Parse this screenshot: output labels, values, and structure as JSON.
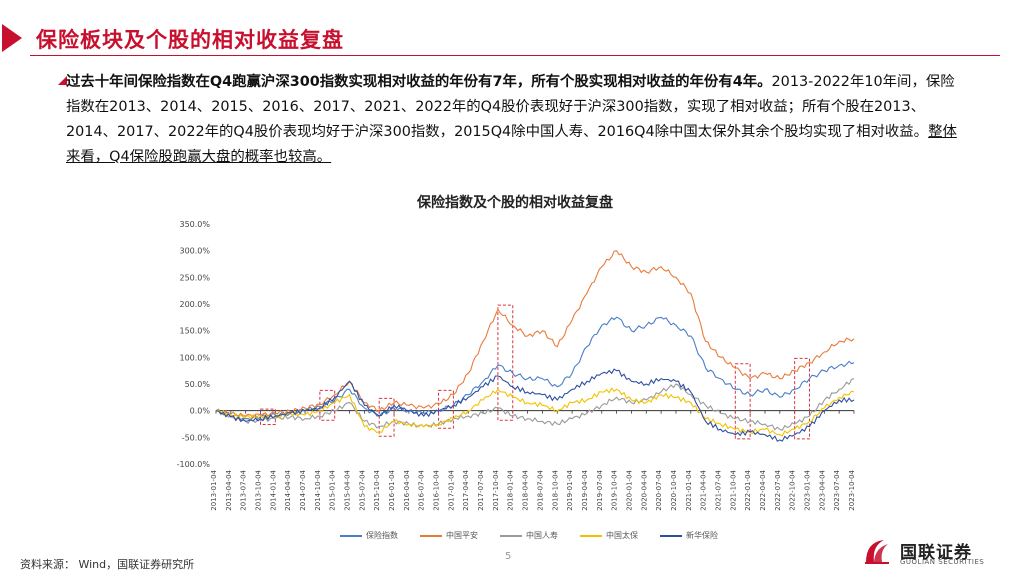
{
  "header": {
    "title": "保险板块及个股的相对收益复盘"
  },
  "summary": {
    "part1": "过去十年间保险指数在Q4跑赢沪深300指数实现相对收益的年份有7年，所有个股实现相对收益的年份有4年。",
    "part2": "2013-2022年10年间，保险指数在2013、2014、2015、2016、2017、2021、2022年的Q4股价表现好于沪深300指数，实现了相对收益；所有个股在2013、2014、2017、2022年的Q4股价表现均好于沪深300指数，2015Q4除中国人寿、2016Q4除中国太保外其余个股均实现了相对收益。",
    "part3": "整体来看，Q4保险股跑赢大盘的概率也较高。"
  },
  "chart_data": {
    "type": "line",
    "title": "保险指数及个股的相对收益复盘",
    "xlabel": "",
    "ylabel": "",
    "ylim": [
      -100,
      350
    ],
    "y_ticks": [
      "-100.0%",
      "-50.0%",
      "0.0%",
      "50.0%",
      "100.0%",
      "150.0%",
      "200.0%",
      "250.0%",
      "300.0%",
      "350.0%"
    ],
    "y_tick_values": [
      -100,
      -50,
      0,
      50,
      100,
      150,
      200,
      250,
      300,
      350
    ],
    "categories": [
      "2013-01-04",
      "2013-04-04",
      "2013-07-04",
      "2013-10-04",
      "2014-01-04",
      "2014-04-04",
      "2014-07-04",
      "2014-10-04",
      "2015-01-04",
      "2015-04-04",
      "2015-07-04",
      "2015-10-04",
      "2016-01-04",
      "2016-04-04",
      "2016-07-04",
      "2016-10-04",
      "2017-01-04",
      "2017-04-04",
      "2017-07-04",
      "2017-10-04",
      "2018-01-04",
      "2018-04-04",
      "2018-07-04",
      "2018-10-04",
      "2019-01-04",
      "2019-04-04",
      "2019-07-04",
      "2019-10-04",
      "2020-01-04",
      "2020-04-04",
      "2020-07-04",
      "2020-10-04",
      "2021-01-04",
      "2021-04-04",
      "2021-07-04",
      "2021-10-04",
      "2022-01-04",
      "2022-04-04",
      "2022-07-04",
      "2022-10-04",
      "2023-01-04",
      "2023-04-04",
      "2023-07-04",
      "2023-10-04"
    ],
    "series": [
      {
        "name": "保险指数",
        "color": "#4a7ec9",
        "values": [
          0,
          -8,
          -15,
          -12,
          -8,
          -5,
          0,
          8,
          20,
          40,
          5,
          -10,
          5,
          0,
          -5,
          0,
          10,
          30,
          55,
          85,
          70,
          60,
          60,
          45,
          70,
          120,
          160,
          175,
          150,
          160,
          175,
          160,
          140,
          80,
          60,
          40,
          30,
          40,
          25,
          40,
          60,
          75,
          85,
          90
        ]
      },
      {
        "name": "中国平安",
        "color": "#e87b3a",
        "values": [
          0,
          -6,
          -10,
          -8,
          -5,
          -2,
          5,
          12,
          30,
          55,
          15,
          0,
          15,
          10,
          5,
          12,
          30,
          70,
          130,
          190,
          160,
          140,
          150,
          120,
          170,
          220,
          270,
          300,
          270,
          260,
          270,
          250,
          220,
          130,
          100,
          80,
          60,
          70,
          60,
          75,
          90,
          110,
          130,
          135
        ]
      },
      {
        "name": "中国人寿",
        "color": "#9a9a9a",
        "values": [
          0,
          -10,
          -20,
          -18,
          -15,
          -12,
          -15,
          -10,
          0,
          15,
          -20,
          -30,
          -20,
          -25,
          -30,
          -25,
          -15,
          -10,
          -5,
          5,
          -10,
          -15,
          -20,
          -25,
          -15,
          -5,
          10,
          25,
          15,
          20,
          35,
          50,
          30,
          10,
          -5,
          -15,
          -20,
          -25,
          -35,
          -25,
          -10,
          20,
          40,
          60
        ]
      },
      {
        "name": "中国太保",
        "color": "#f2c200",
        "values": [
          0,
          -8,
          -12,
          -10,
          -12,
          -5,
          -8,
          0,
          15,
          30,
          -30,
          -40,
          -20,
          -25,
          -30,
          -25,
          -15,
          0,
          20,
          40,
          25,
          15,
          10,
          0,
          15,
          20,
          35,
          40,
          20,
          15,
          30,
          25,
          15,
          -15,
          -25,
          -35,
          -40,
          -35,
          -45,
          -35,
          -20,
          5,
          25,
          35
        ]
      },
      {
        "name": "新华保险",
        "color": "#2d4fa0",
        "values": [
          0,
          -12,
          -20,
          -15,
          -10,
          -5,
          0,
          5,
          25,
          55,
          10,
          -10,
          10,
          0,
          -10,
          0,
          10,
          25,
          45,
          65,
          45,
          35,
          30,
          20,
          40,
          55,
          70,
          75,
          55,
          50,
          60,
          55,
          35,
          -20,
          -35,
          -45,
          -40,
          -45,
          -55,
          -45,
          -30,
          0,
          20,
          20
        ]
      }
    ],
    "highlight_periods": [
      {
        "from": "2013-10-04",
        "to": "2014-01-04"
      },
      {
        "from": "2014-10-04",
        "to": "2015-01-04"
      },
      {
        "from": "2015-10-04",
        "to": "2016-01-04"
      },
      {
        "from": "2016-10-04",
        "to": "2017-01-04"
      },
      {
        "from": "2017-10-04",
        "to": "2018-01-04"
      },
      {
        "from": "2021-10-04",
        "to": "2022-01-04"
      },
      {
        "from": "2022-10-04",
        "to": "2023-01-04"
      }
    ],
    "highlight_color": "#d9333f",
    "grid": false,
    "legend_position": "bottom"
  },
  "footer": {
    "source": "资料来源： Wind，国联证券研究所",
    "page_number": "5",
    "logo_text": "国联证券",
    "logo_sub": "GUOLIAN SECURITIES"
  }
}
